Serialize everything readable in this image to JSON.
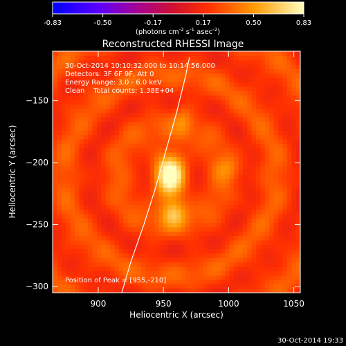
{
  "chart_data": {
    "type": "heatmap",
    "title": "Reconstructed RHESSI Image",
    "xlabel": "Heliocentric X (arcsec)",
    "ylabel": "Heliocentric Y (arcsec)",
    "xlim": [
      865,
      1055
    ],
    "ylim": [
      -305,
      -110
    ],
    "x_ticks": [
      900,
      950,
      1000,
      1050
    ],
    "y_ticks": [
      -150,
      -200,
      -250,
      -300
    ],
    "colorbar": {
      "ticks": [
        "-0.83",
        "-0.50",
        "-0.17",
        "0.17",
        "0.50",
        "0.83"
      ],
      "range": [
        -0.83,
        0.83
      ],
      "unit_prefix": "(photons cm",
      "unit_exp1": "-2",
      "unit_mid1": " s",
      "unit_exp2": "-1",
      "unit_mid2": " asec",
      "unit_exp3": "-2",
      "unit_suffix": ")"
    },
    "annotations": [
      "30-Oct-2014 10:10:32.000 to 10:14:56.000",
      "Detectors: 3F 6F 9F, Att 0",
      "Energy Range: 3.0 - 6.0 keV",
      "Clean    Total counts: 1.38E+04"
    ],
    "peak_text": "Position of Peak = [955,-210]",
    "peak": [
      955,
      -210
    ],
    "sources": [
      {
        "x": 955,
        "y": -210,
        "value": 0.83,
        "sx": 8,
        "sy": 14
      },
      {
        "x": 958,
        "y": -240,
        "value": 0.55,
        "sx": 7,
        "sy": 8
      },
      {
        "x": 965,
        "y": -165,
        "value": 0.35,
        "sx": 5,
        "sy": 10
      },
      {
        "x": 1000,
        "y": -205,
        "value": 0.35,
        "sx": 8,
        "sy": 7
      }
    ],
    "limb": [
      [
        918,
        -305
      ],
      [
        925,
        -280
      ],
      [
        935,
        -250
      ],
      [
        944,
        -220
      ],
      [
        952,
        -190
      ],
      [
        960,
        -160
      ],
      [
        967,
        -130
      ],
      [
        970,
        -115
      ]
    ],
    "timestamp": "30-Oct-2014 19:33"
  }
}
